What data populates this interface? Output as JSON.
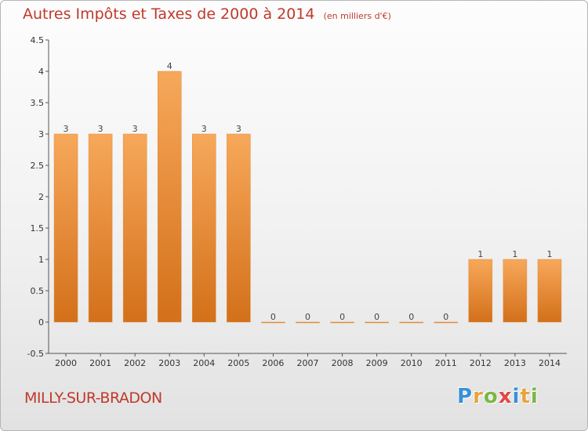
{
  "title": "Autres Impôts et Taxes de 2000 à 2014",
  "unit": "(en milliers d'€)",
  "commune": "MILLY-SUR-BRADON",
  "logo": {
    "text": "Proxiti",
    "letters": [
      "P",
      "r",
      "o",
      "x",
      "i",
      "t",
      "i"
    ],
    "colors": [
      "#3a8fd6",
      "#e8a33d",
      "#7ab648",
      "#e04848",
      "#3a8fd6",
      "#e8a33d",
      "#7ab648"
    ]
  },
  "colors": {
    "title": "#c0392b",
    "bar_top": "#f7a85a",
    "bar_bottom": "#d3701a"
  },
  "chart_data": {
    "type": "bar",
    "categories": [
      "2000",
      "2001",
      "2002",
      "2003",
      "2004",
      "2005",
      "2006",
      "2007",
      "2008",
      "2009",
      "2010",
      "2011",
      "2012",
      "2013",
      "2014"
    ],
    "values": [
      3,
      3,
      3,
      4,
      3,
      3,
      0,
      0,
      0,
      0,
      0,
      0,
      1,
      1,
      1
    ],
    "data_labels": [
      "3",
      "3",
      "3",
      "4",
      "3",
      "3",
      "0",
      "0",
      "0",
      "0",
      "0",
      "0",
      "1",
      "1",
      "1"
    ],
    "ylim": [
      -0.5,
      4.5
    ],
    "yticks": [
      "-0.5",
      "0",
      "0.5",
      "1",
      "1.5",
      "2",
      "2.5",
      "3",
      "3.5",
      "4",
      "4.5"
    ],
    "ytick_values": [
      -0.5,
      0,
      0.5,
      1,
      1.5,
      2,
      2.5,
      3,
      3.5,
      4,
      4.5
    ],
    "grid": false,
    "xlabel": "",
    "ylabel": ""
  }
}
